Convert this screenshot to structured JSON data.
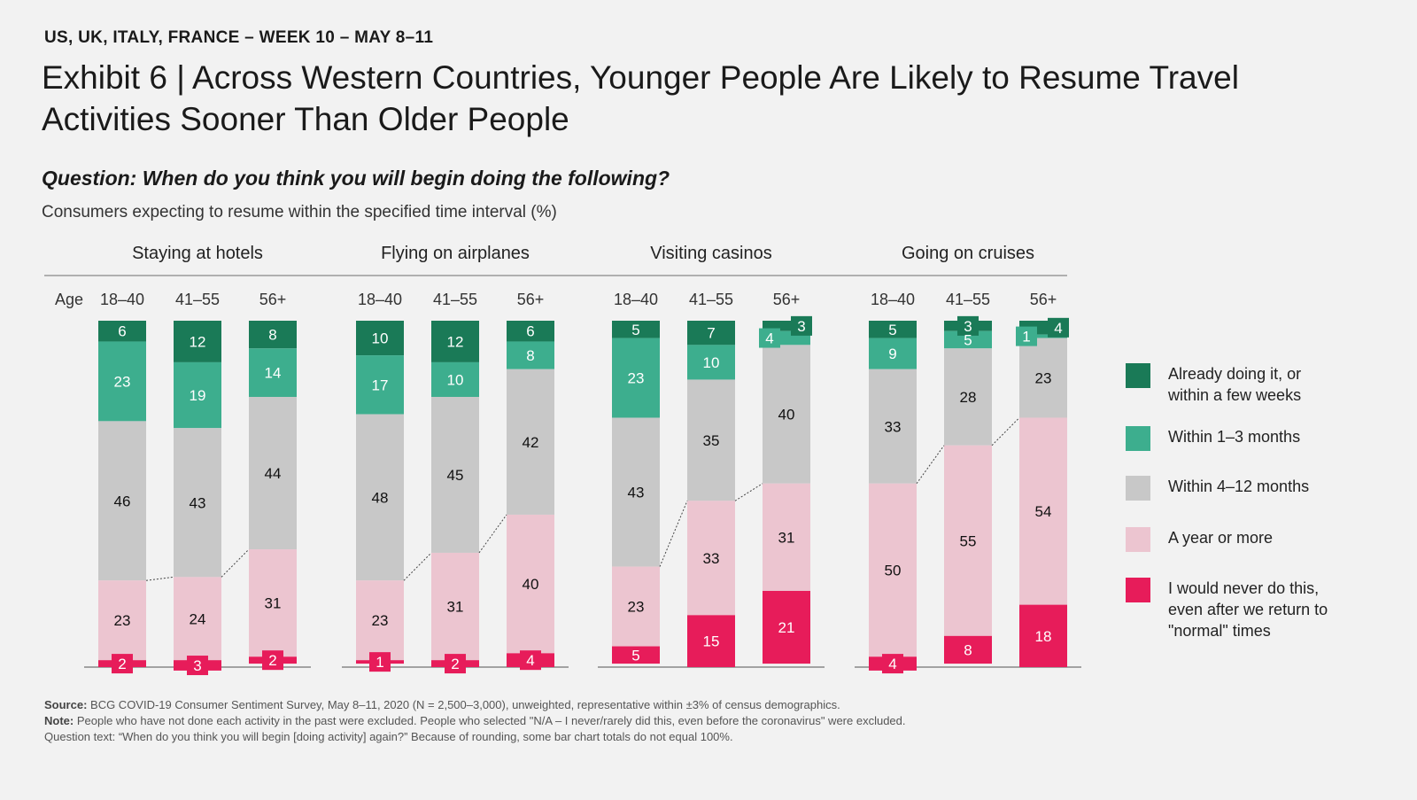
{
  "header": {
    "kicker": "US, UK, ITALY, FRANCE – WEEK 10 – MAY 8–11",
    "title": "Exhibit 6 | Across Western Countries, Younger People Are Likely to Resume Travel Activities Sooner Than Older People",
    "question": "Question: When do you think you will begin doing the following?",
    "subtitle": "Consumers expecting to resume within the specified time interval (%)"
  },
  "chart_data": {
    "type": "bar",
    "stacked": true,
    "age_label": "Age",
    "categories": [
      "18–40",
      "41–55",
      "56+"
    ],
    "series_names": [
      "Already doing it, or within a few weeks",
      "Within 1–3 months",
      "Within 4–12 months",
      "A year or more",
      "I would never do this, even after we return to \"normal\" times"
    ],
    "colors": [
      "#1a7a57",
      "#3dae8e",
      "#c8c8c8",
      "#ecc5d0",
      "#e71c5a"
    ],
    "ylim": [
      0,
      100
    ],
    "legend_position": "right",
    "groups": [
      {
        "title": "Staying at hotels",
        "values": [
          [
            6,
            23,
            46,
            23,
            2
          ],
          [
            12,
            19,
            43,
            24,
            3
          ],
          [
            8,
            14,
            44,
            31,
            2
          ]
        ]
      },
      {
        "title": "Flying on airplanes",
        "values": [
          [
            10,
            17,
            48,
            23,
            1
          ],
          [
            12,
            10,
            45,
            31,
            2
          ],
          [
            6,
            8,
            42,
            40,
            4
          ]
        ]
      },
      {
        "title": "Visiting casinos",
        "values": [
          [
            5,
            23,
            43,
            23,
            5
          ],
          [
            7,
            10,
            35,
            33,
            15
          ],
          [
            3,
            4,
            40,
            31,
            21
          ]
        ]
      },
      {
        "title": "Going on cruises",
        "values": [
          [
            5,
            9,
            33,
            50,
            4
          ],
          [
            3,
            5,
            28,
            55,
            8
          ],
          [
            4,
            1,
            23,
            54,
            18
          ]
        ]
      }
    ]
  },
  "legend": [
    {
      "label": "Already doing it, or within a few weeks",
      "color": "#1a7a57"
    },
    {
      "label": "Within 1–3 months",
      "color": "#3dae8e"
    },
    {
      "label": "Within 4–12 months",
      "color": "#c8c8c8"
    },
    {
      "label": "A year or more",
      "color": "#ecc5d0"
    },
    {
      "label": "I would never do this, even after we return to \"normal\" times",
      "color": "#e71c5a"
    }
  ],
  "notes": {
    "source_label": "Source:",
    "source": " BCG COVID-19 Consumer Sentiment Survey, May 8–11, 2020 (N = 2,500–3,000), unweighted, representative within ±3% of census demographics.",
    "note_label": "Note:",
    "note": " People who have not done each activity in the past were excluded. People who selected \"N/A – I never/rarely did this, even before the coronavirus\" were excluded.",
    "question_text": "Question text: “When do you think you will begin [doing activity] again?” Because of rounding, some bar chart totals do not equal 100%."
  }
}
